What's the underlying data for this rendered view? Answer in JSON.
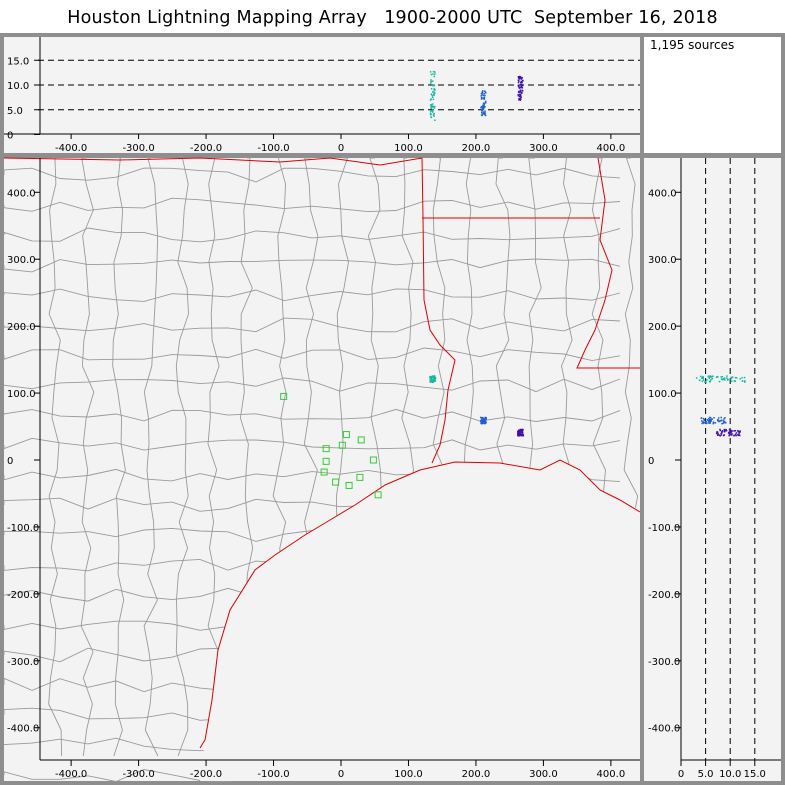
{
  "header": {
    "title": "Houston Lightning Mapping Array   1900-2000 UTC  September 16, 2018"
  },
  "stats": {
    "source_count": "1,195 sources"
  },
  "colors": {
    "frame": "#8e8e8e",
    "plot_bg": "#f3f3f3",
    "county_lines": "#9a9a9a",
    "state_lines": "#e00000",
    "coast": "#e00000",
    "stations": "#33cc33",
    "sources_teal": "#14b8a0",
    "sources_blue": "#1f5fd0",
    "sources_purple": "#4010b0"
  },
  "axes": {
    "x_ticks": [
      "-400.0",
      "-300.0",
      "-200.0",
      "-100.0",
      "0",
      "100.0",
      "200.0",
      "300.0",
      "400.0"
    ],
    "y_ticks": [
      "400.0",
      "300.0",
      "200.0",
      "100.0",
      "0",
      "-100.0",
      "-200.0",
      "-300.0",
      "-400.0"
    ],
    "alt_ticks": [
      "15.0",
      "10.0",
      "5.0",
      "0"
    ],
    "alt_ticks_x": [
      "0",
      "5.0",
      "10.0",
      "15.0"
    ]
  },
  "chart_data": {
    "type": "scatter",
    "units": "km",
    "xlim": [
      -440,
      440
    ],
    "ylim": [
      -440,
      440
    ],
    "zlim": [
      0,
      18
    ],
    "stations": [
      {
        "x": -85,
        "y": 95
      },
      {
        "x": -22,
        "y": 17
      },
      {
        "x": -22,
        "y": -2
      },
      {
        "x": -25,
        "y": -18
      },
      {
        "x": -8,
        "y": -33
      },
      {
        "x": 2,
        "y": 22
      },
      {
        "x": 8,
        "y": 38
      },
      {
        "x": 30,
        "y": 30
      },
      {
        "x": 12,
        "y": -38
      },
      {
        "x": 28,
        "y": -26
      },
      {
        "x": 48,
        "y": 0
      },
      {
        "x": 55,
        "y": -52
      }
    ],
    "source_clusters": [
      {
        "name": "cluster-a",
        "x": 135,
        "y": 122,
        "z_min": 3,
        "z_max": 13,
        "color": "teal"
      },
      {
        "name": "cluster-b",
        "x": 210,
        "y": 60,
        "z_min": 4,
        "z_max": 9,
        "color": "blue"
      },
      {
        "name": "cluster-c",
        "x": 265,
        "y": 42,
        "z_min": 7,
        "z_max": 12,
        "color": "purple"
      }
    ]
  }
}
